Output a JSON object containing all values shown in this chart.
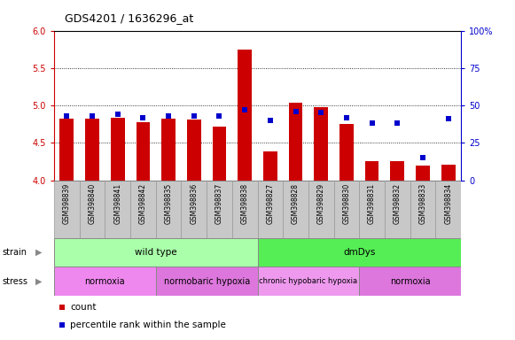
{
  "title": "GDS4201 / 1636296_at",
  "samples": [
    "GSM398839",
    "GSM398840",
    "GSM398841",
    "GSM398842",
    "GSM398835",
    "GSM398836",
    "GSM398837",
    "GSM398838",
    "GSM398827",
    "GSM398828",
    "GSM398829",
    "GSM398830",
    "GSM398831",
    "GSM398832",
    "GSM398833",
    "GSM398834"
  ],
  "counts": [
    4.82,
    4.82,
    4.83,
    4.78,
    4.82,
    4.81,
    4.72,
    5.75,
    4.38,
    5.04,
    4.98,
    4.75,
    4.26,
    4.26,
    4.2,
    4.21
  ],
  "percentile_ranks": [
    43,
    43,
    44,
    42,
    43,
    43,
    43,
    47,
    40,
    46,
    45,
    42,
    38,
    38,
    15,
    41
  ],
  "ylim_left": [
    4.0,
    6.0
  ],
  "ylim_right": [
    0,
    100
  ],
  "yticks_left": [
    4.0,
    4.5,
    5.0,
    5.5,
    6.0
  ],
  "yticks_right": [
    0,
    25,
    50,
    75,
    100
  ],
  "bar_color": "#CC0000",
  "dot_color": "#0000CC",
  "bar_width": 0.55,
  "strain_groups": [
    {
      "label": "wild type",
      "start": 0,
      "end": 8,
      "color": "#AAFFAA"
    },
    {
      "label": "dmDys",
      "start": 8,
      "end": 16,
      "color": "#55EE55"
    }
  ],
  "stress_groups": [
    {
      "label": "normoxia",
      "start": 0,
      "end": 4,
      "color": "#EE88EE"
    },
    {
      "label": "normobaric hypoxia",
      "start": 4,
      "end": 8,
      "color": "#DD77DD"
    },
    {
      "label": "chronic hypobaric hypoxia",
      "start": 8,
      "end": 12,
      "color": "#EE99EE"
    },
    {
      "label": "normoxia",
      "start": 12,
      "end": 16,
      "color": "#DD77DD"
    }
  ],
  "legend_count_label": "count",
  "legend_pct_label": "percentile rank within the sample",
  "left_axis_color": "#CC0000",
  "right_axis_color": "#0000CC",
  "label_row_color": "#C8C8C8",
  "label_row_border": "#999999"
}
